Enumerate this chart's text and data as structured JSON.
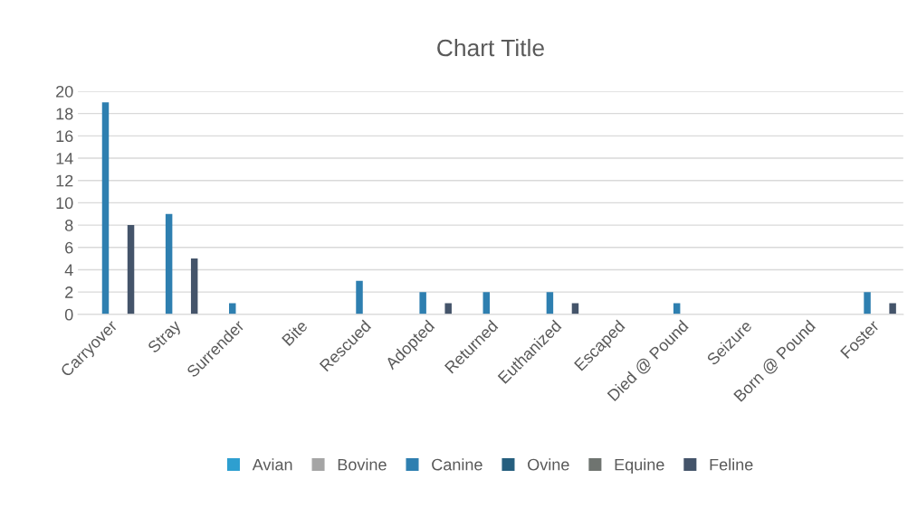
{
  "chart_data": {
    "type": "bar",
    "title": "Chart Title",
    "categories": [
      "Carryover",
      "Stray",
      "Surrender",
      "Bite",
      "Rescued",
      "Adopted",
      "Returned",
      "Euthanized",
      "Escaped",
      "Died @ Pound",
      "Seizure",
      "Born @ Pound",
      "Foster"
    ],
    "series": [
      {
        "name": "Avian",
        "color": "#2e9fd0",
        "values": [
          0,
          0,
          0,
          0,
          0,
          0,
          0,
          0,
          0,
          0,
          0,
          0,
          0
        ]
      },
      {
        "name": "Bovine",
        "color": "#a5a5a5",
        "values": [
          0,
          0,
          0,
          0,
          0,
          0,
          0,
          0,
          0,
          0,
          0,
          0,
          0
        ]
      },
      {
        "name": "Canine",
        "color": "#2e7fb0",
        "values": [
          19,
          9,
          1,
          0,
          3,
          2,
          2,
          2,
          0,
          1,
          0,
          0,
          2
        ]
      },
      {
        "name": "Ovine",
        "color": "#255e7e",
        "values": [
          0,
          0,
          0,
          0,
          0,
          0,
          0,
          0,
          0,
          0,
          0,
          0,
          0
        ]
      },
      {
        "name": "Equine",
        "color": "#6f7470",
        "values": [
          0,
          0,
          0,
          0,
          0,
          0,
          0,
          0,
          0,
          0,
          0,
          0,
          0
        ]
      },
      {
        "name": "Feline",
        "color": "#44546a",
        "values": [
          8,
          5,
          0,
          0,
          0,
          1,
          0,
          1,
          0,
          0,
          0,
          0,
          1
        ]
      }
    ],
    "ylim": [
      0,
      20
    ],
    "yticks": [
      0,
      2,
      4,
      6,
      8,
      10,
      12,
      14,
      16,
      18,
      20
    ],
    "grid": "y",
    "legend": "bottom"
  }
}
